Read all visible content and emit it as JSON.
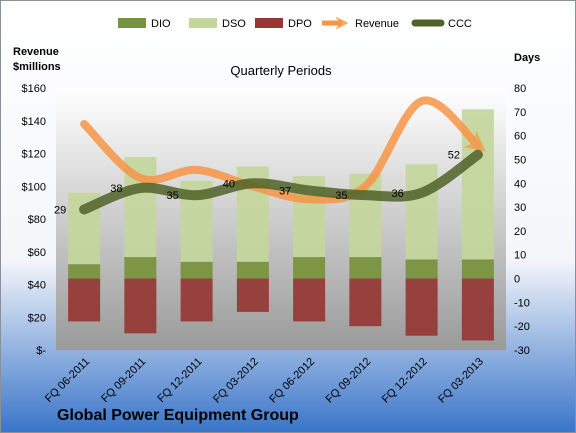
{
  "company": "Global Power Equipment Group",
  "chart_data": {
    "type": "bar",
    "subtitle": "Quarterly Periods",
    "categories": [
      "FQ 06-2011",
      "FQ 09-2011",
      "FQ 12-2011",
      "FQ 03-2012",
      "FQ 06-2012",
      "FQ 09-2012",
      "FQ 12-2012",
      "FQ 03-2013"
    ],
    "y_left": {
      "label_line1": "Revenue",
      "label_line2": "$millions",
      "range": [
        0,
        160
      ],
      "ticks": [
        0,
        20,
        40,
        60,
        80,
        100,
        120,
        140,
        160
      ],
      "tick_labels": [
        "$-",
        "$20",
        "$40",
        "$60",
        "$80",
        "$100",
        "$120",
        "$140",
        "$160"
      ]
    },
    "y_right": {
      "label": "Days",
      "range": [
        -30,
        80
      ],
      "ticks": [
        -30,
        -20,
        -10,
        0,
        10,
        20,
        30,
        40,
        50,
        60,
        70,
        80
      ],
      "tick_labels": [
        "-30",
        "-20",
        "-10",
        "0",
        "10",
        "20",
        "30",
        "40",
        "50",
        "60",
        "70",
        "80"
      ]
    },
    "series": [
      {
        "name": "DIO",
        "axis": "right",
        "kind": "bar",
        "color": "#77933c",
        "values": [
          6,
          9,
          7,
          7,
          9,
          9,
          8,
          8
        ]
      },
      {
        "name": "DSO",
        "axis": "right",
        "kind": "bar",
        "color": "#c3d69b",
        "values": [
          30,
          42,
          34,
          40,
          34,
          35,
          40,
          63
        ]
      },
      {
        "name": "DPO",
        "axis": "right",
        "kind": "bar",
        "color": "#953735",
        "values": [
          -18,
          -23,
          -18,
          -14,
          -18,
          -20,
          -24,
          -26
        ]
      },
      {
        "name": "Revenue",
        "axis": "left",
        "kind": "line",
        "color": "#f79646",
        "values": [
          138,
          105,
          110,
          100,
          92,
          100,
          152,
          125
        ]
      },
      {
        "name": "CCC",
        "axis": "right",
        "kind": "line",
        "color": "#4f6228",
        "values": [
          29,
          38,
          35,
          40,
          37,
          35,
          36,
          52
        ]
      }
    ],
    "ccc_labels": [
      "29",
      "38",
      "35",
      "40",
      "37",
      "35",
      "36",
      "52"
    ],
    "legend_position": "top",
    "grid": false
  }
}
